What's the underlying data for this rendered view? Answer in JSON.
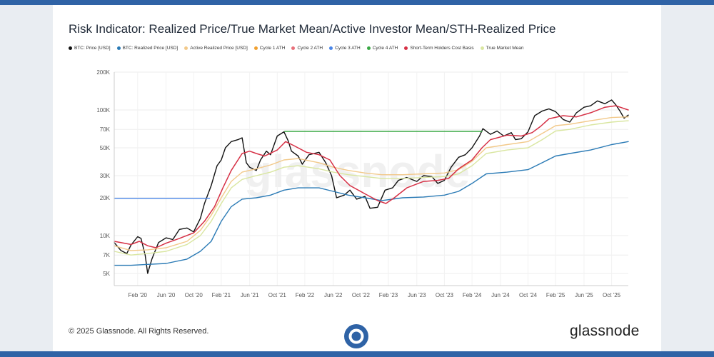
{
  "header": {
    "title": "Risk Indicator: Realized Price/True Market Mean/Active Investor Mean/STH-Realized Price"
  },
  "legend": [
    {
      "label": "BTC: Price [USD]",
      "color": "#111111"
    },
    {
      "label": "BTC: Realized Price [USD]",
      "color": "#2a7ab5"
    },
    {
      "label": "Active Realized Price [USD]",
      "color": "#f2c98a"
    },
    {
      "label": "Cycle 1 ATH",
      "color": "#f0a030"
    },
    {
      "label": "Cycle 2 ATH",
      "color": "#e8707a"
    },
    {
      "label": "Cycle 3 ATH",
      "color": "#4a86e8"
    },
    {
      "label": "Cycle 4 ATH",
      "color": "#3aa845"
    },
    {
      "label": "Short-Term Holders Cost Basis",
      "color": "#d63045"
    },
    {
      "label": "True Market Mean",
      "color": "#d9e6a0"
    }
  ],
  "footer": {
    "copyright": "© 2025 Glassnode. All Rights Reserved.",
    "brand": "glassnode"
  },
  "watermark": "glassnode",
  "chart_data": {
    "type": "line",
    "title": "Risk Indicator: Realized Price/True Market Mean/Active Investor Mean/STH-Realized Price",
    "x_range": [
      2019.8,
      2025.95
    ],
    "y_scale": "log",
    "ylim": [
      4000,
      200000
    ],
    "y_ticks": [
      {
        "value": 5000,
        "label": "5K"
      },
      {
        "value": 7000,
        "label": "7K"
      },
      {
        "value": 10000,
        "label": "10K"
      },
      {
        "value": 20000,
        "label": "20K"
      },
      {
        "value": 30000,
        "label": "30K"
      },
      {
        "value": 50000,
        "label": "50K"
      },
      {
        "value": 70000,
        "label": "70K"
      },
      {
        "value": 100000,
        "label": "100K"
      },
      {
        "value": 200000,
        "label": "200K"
      }
    ],
    "x_ticks": [
      {
        "value": 2020.08,
        "label": "Feb '20"
      },
      {
        "value": 2020.42,
        "label": "Jun '20"
      },
      {
        "value": 2020.75,
        "label": "Oct '20"
      },
      {
        "value": 2021.08,
        "label": "Feb '21"
      },
      {
        "value": 2021.42,
        "label": "Jun '21"
      },
      {
        "value": 2021.75,
        "label": "Oct '21"
      },
      {
        "value": 2022.08,
        "label": "Feb '22"
      },
      {
        "value": 2022.42,
        "label": "Jun '22"
      },
      {
        "value": 2022.75,
        "label": "Oct '22"
      },
      {
        "value": 2023.08,
        "label": "Feb '23"
      },
      {
        "value": 2023.42,
        "label": "Jun '23"
      },
      {
        "value": 2023.75,
        "label": "Oct '23"
      },
      {
        "value": 2024.08,
        "label": "Feb '24"
      },
      {
        "value": 2024.42,
        "label": "Jun '24"
      },
      {
        "value": 2024.75,
        "label": "Oct '24"
      },
      {
        "value": 2025.08,
        "label": "Feb '25"
      },
      {
        "value": 2025.42,
        "label": "Jun '25"
      },
      {
        "value": 2025.75,
        "label": "Oct '25"
      }
    ],
    "series": [
      {
        "name": "BTC: Price [USD]",
        "color": "#111111",
        "width": 1.4,
        "points": [
          [
            2019.8,
            8800
          ],
          [
            2019.88,
            7600
          ],
          [
            2019.95,
            7200
          ],
          [
            2020.0,
            8400
          ],
          [
            2020.08,
            9800
          ],
          [
            2020.12,
            9500
          ],
          [
            2020.17,
            7000
          ],
          [
            2020.2,
            5000
          ],
          [
            2020.25,
            6500
          ],
          [
            2020.33,
            8800
          ],
          [
            2020.42,
            9600
          ],
          [
            2020.5,
            9300
          ],
          [
            2020.58,
            11200
          ],
          [
            2020.67,
            11500
          ],
          [
            2020.75,
            10700
          ],
          [
            2020.83,
            13700
          ],
          [
            2020.88,
            18000
          ],
          [
            2020.96,
            25000
          ],
          [
            2021.03,
            36000
          ],
          [
            2021.08,
            40000
          ],
          [
            2021.13,
            50000
          ],
          [
            2021.2,
            56000
          ],
          [
            2021.28,
            58000
          ],
          [
            2021.33,
            60000
          ],
          [
            2021.38,
            38000
          ],
          [
            2021.42,
            35000
          ],
          [
            2021.5,
            33000
          ],
          [
            2021.55,
            40000
          ],
          [
            2021.62,
            47000
          ],
          [
            2021.67,
            44000
          ],
          [
            2021.75,
            62000
          ],
          [
            2021.83,
            67000
          ],
          [
            2021.88,
            57000
          ],
          [
            2021.92,
            47000
          ],
          [
            2022.0,
            43000
          ],
          [
            2022.05,
            37000
          ],
          [
            2022.13,
            44000
          ],
          [
            2022.25,
            46000
          ],
          [
            2022.33,
            38000
          ],
          [
            2022.4,
            30000
          ],
          [
            2022.46,
            20000
          ],
          [
            2022.55,
            21000
          ],
          [
            2022.62,
            23000
          ],
          [
            2022.7,
            19500
          ],
          [
            2022.8,
            20500
          ],
          [
            2022.86,
            16500
          ],
          [
            2022.95,
            16800
          ],
          [
            2023.04,
            23000
          ],
          [
            2023.13,
            24000
          ],
          [
            2023.2,
            27500
          ],
          [
            2023.3,
            29000
          ],
          [
            2023.42,
            27000
          ],
          [
            2023.5,
            30000
          ],
          [
            2023.6,
            29500
          ],
          [
            2023.67,
            26000
          ],
          [
            2023.75,
            27500
          ],
          [
            2023.83,
            35000
          ],
          [
            2023.92,
            42000
          ],
          [
            2024.0,
            44000
          ],
          [
            2024.08,
            50000
          ],
          [
            2024.17,
            62000
          ],
          [
            2024.21,
            71000
          ],
          [
            2024.3,
            64000
          ],
          [
            2024.38,
            68000
          ],
          [
            2024.46,
            62000
          ],
          [
            2024.55,
            66000
          ],
          [
            2024.6,
            58000
          ],
          [
            2024.67,
            59000
          ],
          [
            2024.75,
            67000
          ],
          [
            2024.83,
            90000
          ],
          [
            2024.92,
            98000
          ],
          [
            2025.0,
            102000
          ],
          [
            2025.08,
            97000
          ],
          [
            2025.17,
            84000
          ],
          [
            2025.25,
            80000
          ],
          [
            2025.33,
            95000
          ],
          [
            2025.42,
            105000
          ],
          [
            2025.5,
            108000
          ],
          [
            2025.58,
            118000
          ],
          [
            2025.67,
            112000
          ],
          [
            2025.75,
            120000
          ],
          [
            2025.8,
            110000
          ],
          [
            2025.85,
            98000
          ],
          [
            2025.9,
            86000
          ],
          [
            2025.95,
            91000
          ]
        ]
      },
      {
        "name": "BTC: Realized Price [USD]",
        "color": "#2a7ab5",
        "width": 1.4,
        "points": [
          [
            2019.8,
            5800
          ],
          [
            2020.0,
            5800
          ],
          [
            2020.2,
            5900
          ],
          [
            2020.42,
            6000
          ],
          [
            2020.67,
            6500
          ],
          [
            2020.83,
            7500
          ],
          [
            2020.96,
            9000
          ],
          [
            2021.08,
            13000
          ],
          [
            2021.2,
            17000
          ],
          [
            2021.33,
            19500
          ],
          [
            2021.5,
            20000
          ],
          [
            2021.67,
            21000
          ],
          [
            2021.83,
            23000
          ],
          [
            2022.0,
            24000
          ],
          [
            2022.25,
            24000
          ],
          [
            2022.42,
            22500
          ],
          [
            2022.6,
            21000
          ],
          [
            2022.8,
            20000
          ],
          [
            2023.0,
            19000
          ],
          [
            2023.25,
            20000
          ],
          [
            2023.5,
            20300
          ],
          [
            2023.75,
            21000
          ],
          [
            2023.92,
            22500
          ],
          [
            2024.08,
            26000
          ],
          [
            2024.25,
            31000
          ],
          [
            2024.5,
            32000
          ],
          [
            2024.75,
            33500
          ],
          [
            2024.92,
            38000
          ],
          [
            2025.08,
            43000
          ],
          [
            2025.25,
            45000
          ],
          [
            2025.5,
            48000
          ],
          [
            2025.75,
            53000
          ],
          [
            2025.95,
            56000
          ]
        ]
      },
      {
        "name": "True Market Mean",
        "color": "#d9e6a0",
        "width": 1.4,
        "points": [
          [
            2019.8,
            7500
          ],
          [
            2020.0,
            7000
          ],
          [
            2020.2,
            7200
          ],
          [
            2020.42,
            7500
          ],
          [
            2020.67,
            8500
          ],
          [
            2020.83,
            10000
          ],
          [
            2020.96,
            13000
          ],
          [
            2021.08,
            18000
          ],
          [
            2021.2,
            24000
          ],
          [
            2021.33,
            28000
          ],
          [
            2021.5,
            30000
          ],
          [
            2021.67,
            32000
          ],
          [
            2021.83,
            35000
          ],
          [
            2022.0,
            36000
          ],
          [
            2022.25,
            34000
          ],
          [
            2022.42,
            32000
          ],
          [
            2022.6,
            30500
          ],
          [
            2022.8,
            29500
          ],
          [
            2023.0,
            28500
          ],
          [
            2023.25,
            28500
          ],
          [
            2023.5,
            29000
          ],
          [
            2023.75,
            29500
          ],
          [
            2023.92,
            31000
          ],
          [
            2024.08,
            36000
          ],
          [
            2024.25,
            45000
          ],
          [
            2024.5,
            48000
          ],
          [
            2024.75,
            50000
          ],
          [
            2024.92,
            58000
          ],
          [
            2025.08,
            68000
          ],
          [
            2025.25,
            70000
          ],
          [
            2025.5,
            76000
          ],
          [
            2025.75,
            80000
          ],
          [
            2025.95,
            82000
          ]
        ]
      },
      {
        "name": "Active Realized Price [USD]",
        "color": "#f2c98a",
        "width": 1.4,
        "points": [
          [
            2019.8,
            8300
          ],
          [
            2020.0,
            7600
          ],
          [
            2020.2,
            7700
          ],
          [
            2020.42,
            8000
          ],
          [
            2020.67,
            9000
          ],
          [
            2020.83,
            11000
          ],
          [
            2020.96,
            14500
          ],
          [
            2021.08,
            20000
          ],
          [
            2021.2,
            27000
          ],
          [
            2021.33,
            32000
          ],
          [
            2021.5,
            34000
          ],
          [
            2021.67,
            36500
          ],
          [
            2021.83,
            40000
          ],
          [
            2022.0,
            41000
          ],
          [
            2022.25,
            38000
          ],
          [
            2022.42,
            35000
          ],
          [
            2022.6,
            33000
          ],
          [
            2022.8,
            31500
          ],
          [
            2023.0,
            30500
          ],
          [
            2023.25,
            30500
          ],
          [
            2023.5,
            31000
          ],
          [
            2023.75,
            31500
          ],
          [
            2023.92,
            33500
          ],
          [
            2024.08,
            39000
          ],
          [
            2024.25,
            50000
          ],
          [
            2024.5,
            53000
          ],
          [
            2024.75,
            56000
          ],
          [
            2024.92,
            65000
          ],
          [
            2025.08,
            75000
          ],
          [
            2025.25,
            77000
          ],
          [
            2025.5,
            82000
          ],
          [
            2025.75,
            87000
          ],
          [
            2025.95,
            88000
          ]
        ]
      },
      {
        "name": "Short-Term Holders Cost Basis",
        "color": "#d63045",
        "width": 1.5,
        "points": [
          [
            2019.8,
            9000
          ],
          [
            2020.0,
            8500
          ],
          [
            2020.1,
            9000
          ],
          [
            2020.2,
            8300
          ],
          [
            2020.3,
            8000
          ],
          [
            2020.42,
            8700
          ],
          [
            2020.58,
            9500
          ],
          [
            2020.75,
            10500
          ],
          [
            2020.88,
            13000
          ],
          [
            2021.0,
            17000
          ],
          [
            2021.1,
            24000
          ],
          [
            2021.2,
            33000
          ],
          [
            2021.33,
            45000
          ],
          [
            2021.42,
            47000
          ],
          [
            2021.5,
            45000
          ],
          [
            2021.6,
            43000
          ],
          [
            2021.75,
            48000
          ],
          [
            2021.85,
            56000
          ],
          [
            2021.95,
            52000
          ],
          [
            2022.1,
            46000
          ],
          [
            2022.25,
            44000
          ],
          [
            2022.38,
            40000
          ],
          [
            2022.5,
            30000
          ],
          [
            2022.62,
            25000
          ],
          [
            2022.8,
            21500
          ],
          [
            2022.95,
            19000
          ],
          [
            2023.05,
            18000
          ],
          [
            2023.15,
            20000
          ],
          [
            2023.3,
            24000
          ],
          [
            2023.5,
            27000
          ],
          [
            2023.67,
            27500
          ],
          [
            2023.8,
            28500
          ],
          [
            2023.92,
            34000
          ],
          [
            2024.08,
            40000
          ],
          [
            2024.2,
            50000
          ],
          [
            2024.3,
            58000
          ],
          [
            2024.5,
            63000
          ],
          [
            2024.67,
            62000
          ],
          [
            2024.8,
            66000
          ],
          [
            2024.9,
            74000
          ],
          [
            2025.0,
            85000
          ],
          [
            2025.17,
            90000
          ],
          [
            2025.33,
            88000
          ],
          [
            2025.5,
            95000
          ],
          [
            2025.67,
            105000
          ],
          [
            2025.8,
            108000
          ],
          [
            2025.95,
            100000
          ]
        ]
      },
      {
        "name": "Cycle 3 ATH",
        "color": "#4a86e8",
        "width": 1.4,
        "points": [
          [
            2019.8,
            19800
          ],
          [
            2020.94,
            19800
          ]
        ]
      },
      {
        "name": "Cycle 4 ATH",
        "color": "#3aa845",
        "width": 1.4,
        "points": [
          [
            2021.84,
            67500
          ],
          [
            2024.2,
            67500
          ]
        ]
      }
    ]
  }
}
